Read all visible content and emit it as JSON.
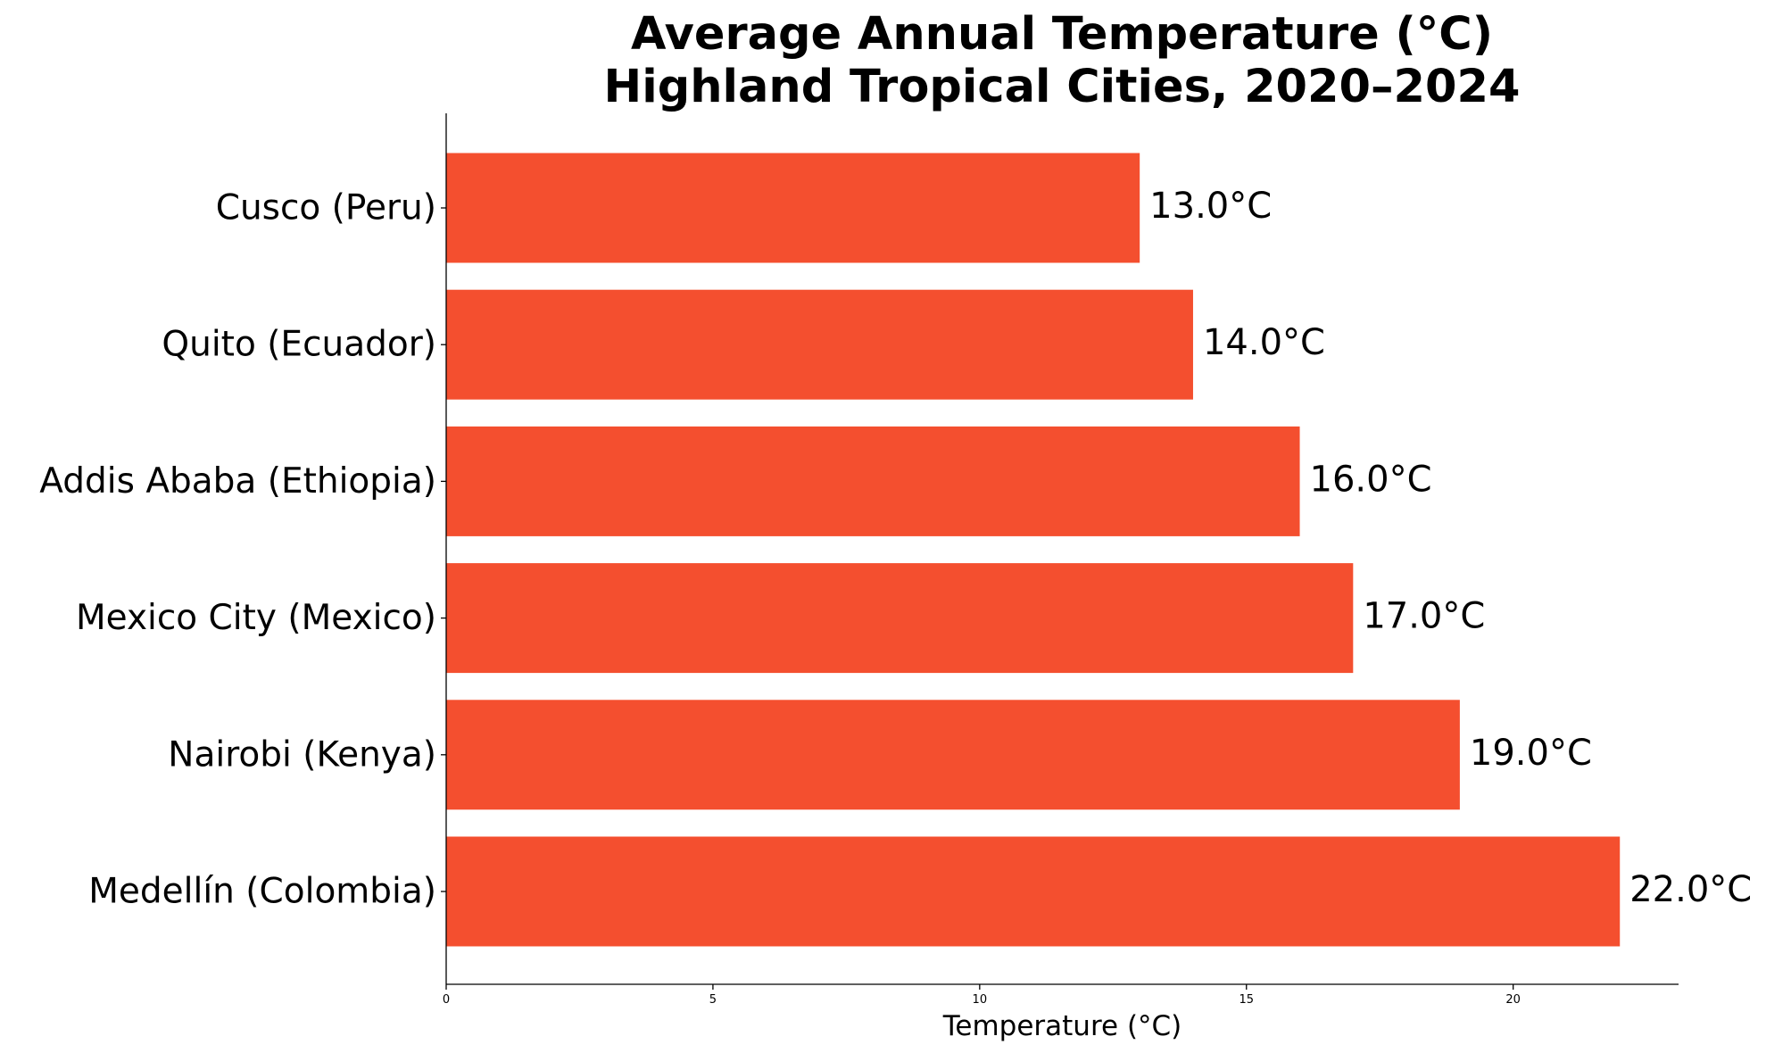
{
  "chart_data": {
    "type": "bar",
    "orientation": "horizontal",
    "title_lines": [
      "Average Annual Temperature (°C)",
      "Highland Tropical Cities, 2020–2024"
    ],
    "xlabel": "Temperature (°C)",
    "ylabel": "",
    "categories": [
      "Cusco (Peru)",
      "Quito (Ecuador)",
      "Addis Ababa (Ethiopia)",
      "Mexico City (Mexico)",
      "Nairobi (Kenya)",
      "Medellín (Colombia)"
    ],
    "values": [
      13.0,
      14.0,
      16.0,
      17.0,
      19.0,
      22.0
    ],
    "value_labels": [
      "13.0°C",
      "14.0°C",
      "16.0°C",
      "17.0°C",
      "19.0°C",
      "22.0°C"
    ],
    "xlim": [
      0,
      23.1
    ],
    "xticks": [
      0,
      5,
      10,
      15,
      20
    ],
    "xtick_labels": [
      "0",
      "5",
      "10",
      "15",
      "20"
    ],
    "bar_color": "#f44f2f",
    "grid": false,
    "legend": "none"
  }
}
